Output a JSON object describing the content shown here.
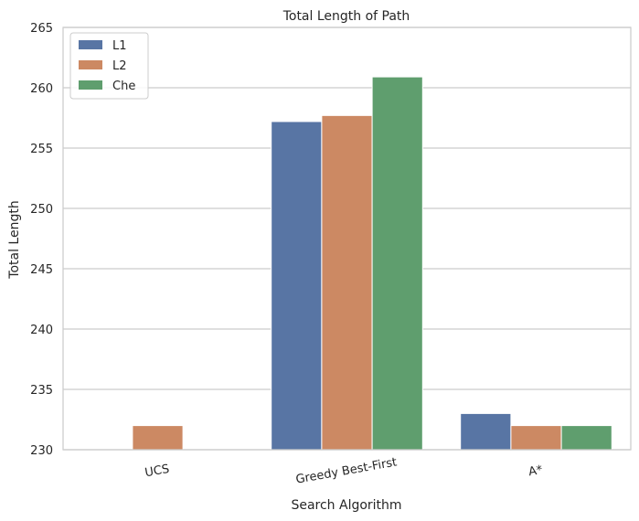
{
  "chart_data": {
    "type": "bar",
    "title": "Total Length of Path",
    "xlabel": "Search Algorithm",
    "ylabel": "Total Length",
    "categories": [
      "UCS",
      "Greedy Best-First",
      "A*"
    ],
    "series": [
      {
        "name": "L1",
        "color": "#5875a4",
        "values": [
          230,
          257.2,
          233
        ]
      },
      {
        "name": "L2",
        "color": "#cc8963",
        "values": [
          232,
          257.7,
          232
        ]
      },
      {
        "name": "Che",
        "color": "#5f9e6e",
        "values": [
          230,
          260.9,
          232
        ]
      }
    ],
    "ylim": [
      230,
      265
    ],
    "yticks": [
      "230",
      "235",
      "240",
      "245",
      "250",
      "255",
      "260",
      "265"
    ],
    "grid": "horizontal",
    "legend_position": "top-left"
  }
}
